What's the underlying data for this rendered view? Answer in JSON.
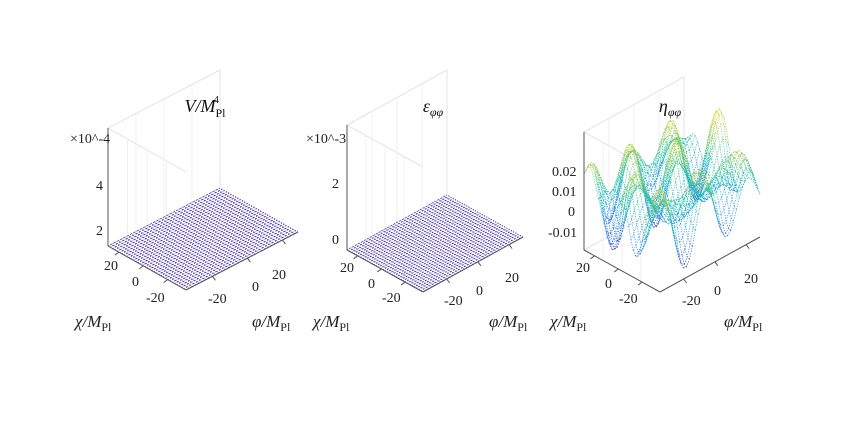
{
  "chart_data": [
    {
      "type": "surface",
      "title": "V/M_Pl^4",
      "exponent_label": "×10^-4",
      "zticks": [
        "4",
        "2"
      ],
      "ticks_chi": [
        "20",
        "0",
        "-20"
      ],
      "ticks_phi": [
        "-20",
        "0",
        "20"
      ],
      "xlabel": "φ/M_Pl",
      "ylabel": "χ/M_Pl",
      "zlim": [
        1.5,
        5.0
      ]
    },
    {
      "type": "surface",
      "title": "ε_φφ",
      "exponent_label": "×10^-3",
      "zticks": [
        "2",
        "0"
      ],
      "ticks_chi": [
        "20",
        "0",
        "-20"
      ],
      "ticks_phi": [
        "-20",
        "0",
        "20"
      ],
      "xlabel": "φ/M_Pl",
      "ylabel": "χ/M_Pl",
      "zlim": [
        0,
        3
      ]
    },
    {
      "type": "surface",
      "title": "η_φφ",
      "exponent_label": "",
      "zticks": [
        "0.02",
        "0.01",
        "0",
        "-0.01"
      ],
      "ticks_chi": [
        "20",
        "0",
        "-20"
      ],
      "ticks_phi": [
        "-20",
        "0",
        "20"
      ],
      "xlabel": "φ/M_Pl",
      "ylabel": "χ/M_Pl",
      "zlim": [
        -0.015,
        0.028
      ]
    }
  ]
}
